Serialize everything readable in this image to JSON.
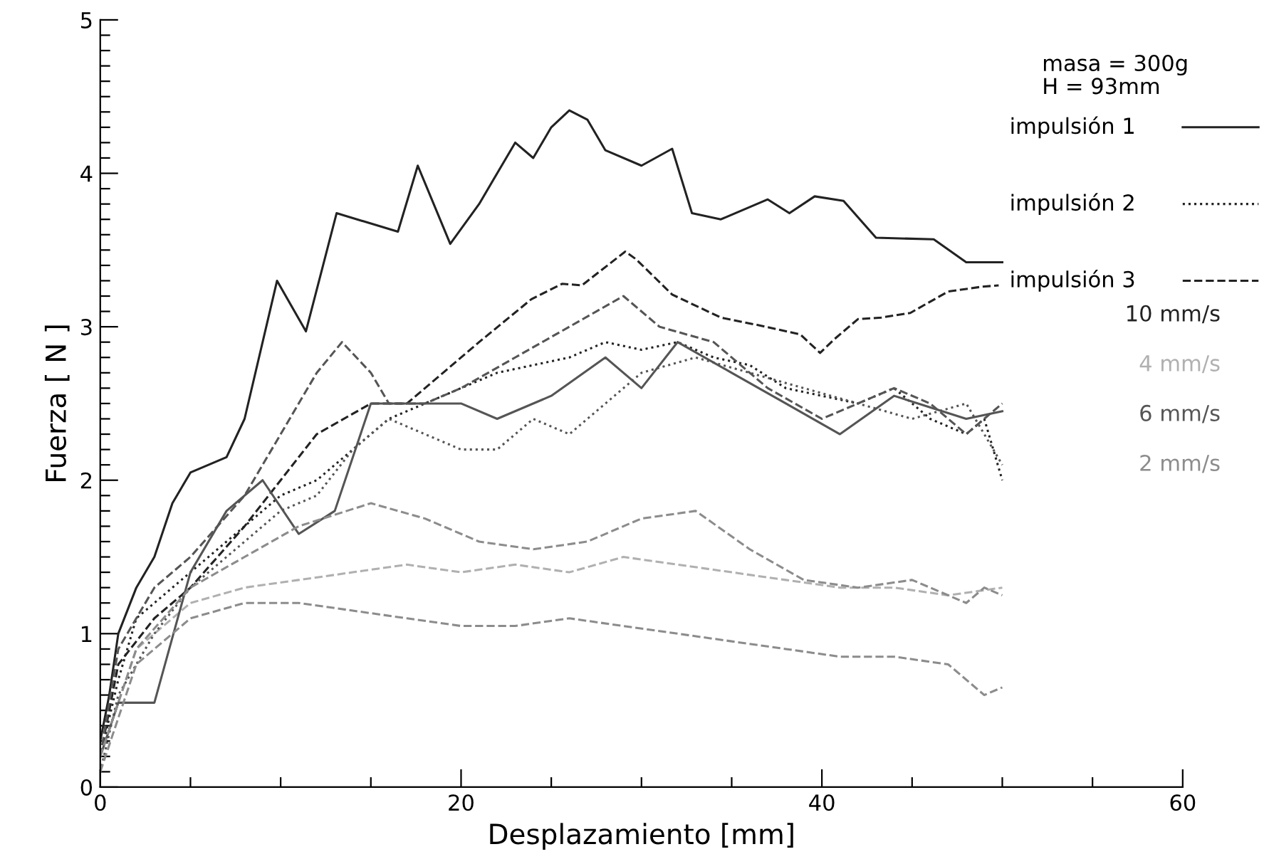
{
  "chart_data": {
    "type": "line",
    "xlabel": "Desplazamiento [mm]",
    "ylabel": "Fuerza [ N ]",
    "annotations": [
      "masa = 300g",
      "H = 93mm",
      "impulsión 1",
      "impulsión 2",
      "impulsión 3"
    ],
    "xlim": [
      0,
      60
    ],
    "ylim": [
      0,
      5
    ],
    "xticks": [
      0,
      {
        "value": 5,
        "label": null
      },
      {
        "value": 10,
        "label": null
      },
      {
        "value": 15,
        "label": null
      },
      20,
      {
        "value": 25,
        "label": null
      },
      {
        "value": 30,
        "label": null
      },
      {
        "value": 35,
        "label": null
      },
      40,
      {
        "value": 45,
        "label": null
      },
      {
        "value": 50,
        "label": null
      },
      {
        "value": 55,
        "label": null
      },
      60
    ],
    "yticks": [
      0,
      {
        "value": 0.1,
        "label": null
      },
      {
        "value": 0.2,
        "label": null
      },
      {
        "value": 0.3,
        "label": null
      },
      {
        "value": 0.4,
        "label": null
      },
      {
        "value": 0.5,
        "label": null
      },
      {
        "value": 0.6,
        "label": null
      },
      {
        "value": 0.7,
        "label": null
      },
      {
        "value": 0.8,
        "label": null
      },
      {
        "value": 0.9,
        "label": null
      },
      1,
      {
        "value": 1.1,
        "label": null
      },
      {
        "value": 1.2,
        "label": null
      },
      {
        "value": 1.3,
        "label": null
      },
      {
        "value": 1.4,
        "label": null
      },
      {
        "value": 1.5,
        "label": null
      },
      {
        "value": 1.6,
        "label": null
      },
      {
        "value": 1.7,
        "label": null
      },
      {
        "value": 1.8,
        "label": null
      },
      {
        "value": 1.9,
        "label": null
      },
      2,
      {
        "value": 2.1,
        "label": null
      },
      {
        "value": 2.2,
        "label": null
      },
      {
        "value": 2.3,
        "label": null
      },
      {
        "value": 2.4,
        "label": null
      },
      {
        "value": 2.5,
        "label": null
      },
      {
        "value": 2.6,
        "label": null
      },
      {
        "value": 2.7,
        "label": null
      },
      {
        "value": 2.8,
        "label": null
      },
      {
        "value": 2.9,
        "label": null
      },
      3,
      {
        "value": 3.1,
        "label": null
      },
      {
        "value": 3.2,
        "label": null
      },
      {
        "value": 3.3,
        "label": null
      },
      {
        "value": 3.4,
        "label": null
      },
      {
        "value": 3.5,
        "label": null
      },
      {
        "value": 3.6,
        "label": null
      },
      {
        "value": 3.7,
        "label": null
      },
      {
        "value": 3.8,
        "label": null
      },
      {
        "value": 3.9,
        "label": null
      },
      4,
      {
        "value": 4.1,
        "label": null
      },
      {
        "value": 4.2,
        "label": null
      },
      {
        "value": 4.3,
        "label": null
      },
      {
        "value": 4.4,
        "label": null
      },
      {
        "value": 4.5,
        "label": null
      },
      {
        "value": 4.6,
        "label": null
      },
      {
        "value": 4.7,
        "label": null
      },
      {
        "value": 4.8,
        "label": null
      },
      {
        "value": 4.9,
        "label": null
      },
      5
    ],
    "grid": false,
    "legend": "top right",
    "marker": "none",
    "series": [
      {
        "name": "10 mm/s",
        "color": "#222222",
        "line_style": "solid",
        "x": [
          0,
          0.5,
          1,
          2,
          3,
          4,
          5,
          7,
          8,
          9.8,
          11.4,
          13.1,
          16.5,
          17.6,
          19.4,
          21,
          23,
          24,
          25,
          26,
          27,
          28,
          30,
          31.7,
          32.8,
          34.4,
          37,
          38.2,
          39.6,
          41.2,
          43,
          46.2,
          48,
          50
        ],
        "values": [
          0.3,
          0.6,
          1.0,
          1.3,
          1.5,
          1.85,
          2.05,
          2.15,
          2.4,
          3.3,
          2.97,
          3.74,
          3.62,
          4.05,
          3.54,
          3.8,
          4.2,
          4.1,
          4.3,
          4.41,
          4.35,
          4.15,
          4.05,
          4.16,
          3.74,
          3.7,
          3.83,
          3.74,
          3.85,
          3.82,
          3.58,
          3.57,
          3.42,
          3.42
        ]
      },
      {
        "color": "#222222",
        "line_style": "dotted",
        "x": [
          0,
          1,
          2,
          4,
          6,
          8,
          10,
          12,
          14,
          16,
          18,
          20,
          22,
          24,
          26,
          28,
          30,
          32,
          34,
          36,
          38,
          40,
          42,
          44,
          46,
          48,
          49,
          50
        ],
        "values": [
          0.2,
          0.7,
          1.1,
          1.3,
          1.5,
          1.7,
          1.9,
          2.0,
          2.2,
          2.4,
          2.5,
          2.6,
          2.7,
          2.75,
          2.8,
          2.9,
          2.85,
          2.9,
          2.8,
          2.75,
          2.6,
          2.55,
          2.5,
          2.6,
          2.4,
          2.3,
          2.4,
          2.0
        ]
      },
      {
        "color": "#222222",
        "line_style": "dashed",
        "x": [
          0,
          1,
          3,
          5,
          8,
          10,
          12,
          15,
          17,
          19,
          21,
          23.9,
          25.6,
          26.7,
          29.1,
          29.7,
          31.7,
          34.4,
          36.5,
          38.8,
          39.9,
          40.7,
          42,
          43.3,
          44.9,
          47,
          48.8,
          49.8
        ],
        "values": [
          0.2,
          0.8,
          1.1,
          1.3,
          1.7,
          2.0,
          2.3,
          2.5,
          2.5,
          2.7,
          2.9,
          3.18,
          3.28,
          3.27,
          3.49,
          3.44,
          3.21,
          3.06,
          3.01,
          2.95,
          2.83,
          2.92,
          3.05,
          3.06,
          3.09,
          3.23,
          3.26,
          3.27
        ]
      },
      {
        "name": "4 mm/s",
        "color": "#b0b0b0",
        "line_style": "dashed",
        "x": [
          0,
          2,
          5,
          8,
          11,
          14,
          17,
          20,
          23,
          26,
          29,
          32,
          35,
          38,
          41,
          44,
          47,
          50
        ],
        "values": [
          0.2,
          0.9,
          1.2,
          1.3,
          1.35,
          1.4,
          1.45,
          1.4,
          1.45,
          1.4,
          1.5,
          1.45,
          1.4,
          1.35,
          1.3,
          1.3,
          1.25,
          1.3
        ]
      },
      {
        "name": "6 mm/s",
        "color": "#555555",
        "line_style": "solid",
        "x": [
          0,
          1,
          3,
          5,
          7,
          9,
          11,
          13,
          15,
          17,
          20,
          22,
          25,
          28,
          30,
          32,
          35,
          38,
          41,
          44,
          48,
          50
        ],
        "values": [
          0.2,
          0.55,
          0.55,
          1.4,
          1.8,
          2.0,
          1.65,
          1.8,
          2.5,
          2.5,
          2.5,
          2.4,
          2.55,
          2.8,
          2.6,
          2.9,
          2.7,
          2.5,
          2.3,
          2.55,
          2.4,
          2.45
        ]
      },
      {
        "color": "#555555",
        "line_style": "dotted",
        "x": [
          0,
          1,
          3,
          5,
          8,
          10,
          12,
          14,
          16,
          18,
          20,
          22,
          24,
          26,
          28,
          30,
          33,
          36,
          39,
          42,
          45,
          48,
          50
        ],
        "values": [
          0.1,
          0.6,
          1.0,
          1.3,
          1.6,
          1.8,
          1.9,
          2.2,
          2.4,
          2.3,
          2.2,
          2.2,
          2.4,
          2.3,
          2.5,
          2.7,
          2.8,
          2.7,
          2.6,
          2.5,
          2.4,
          2.5,
          2.1
        ]
      },
      {
        "color": "#555555",
        "line_style": "dashed",
        "x": [
          0,
          1,
          3,
          5,
          8,
          10,
          12,
          13.4,
          15,
          16,
          18,
          20,
          23,
          26,
          29,
          31,
          34,
          37,
          40,
          42,
          44,
          46,
          48,
          50
        ],
        "values": [
          0.2,
          0.9,
          1.3,
          1.5,
          1.9,
          2.3,
          2.7,
          2.9,
          2.7,
          2.5,
          2.5,
          2.6,
          2.8,
          3.0,
          3.2,
          3.0,
          2.9,
          2.6,
          2.4,
          2.5,
          2.6,
          2.5,
          2.3,
          2.5
        ]
      },
      {
        "name": "2 mm/s",
        "color": "#8c8c8c",
        "line_style": "dashed",
        "x": [
          0,
          2,
          5,
          8,
          11,
          15,
          18,
          21,
          24,
          27,
          30,
          33,
          36,
          39,
          42,
          45,
          48,
          49,
          50
        ],
        "values": [
          0.2,
          0.9,
          1.3,
          1.5,
          1.7,
          1.85,
          1.75,
          1.6,
          1.55,
          1.6,
          1.75,
          1.8,
          1.55,
          1.35,
          1.3,
          1.35,
          1.2,
          1.3,
          1.25
        ]
      },
      {
        "color": "#8c8c8c",
        "line_style": "dashed",
        "x": [
          0,
          2,
          5,
          8,
          11,
          14,
          17,
          20,
          23,
          26,
          29,
          32,
          35,
          38,
          41,
          44,
          47,
          49,
          50
        ],
        "values": [
          0.1,
          0.8,
          1.1,
          1.2,
          1.2,
          1.15,
          1.1,
          1.05,
          1.05,
          1.1,
          1.05,
          1.0,
          0.95,
          0.9,
          0.85,
          0.85,
          0.8,
          0.6,
          0.65
        ]
      }
    ]
  }
}
